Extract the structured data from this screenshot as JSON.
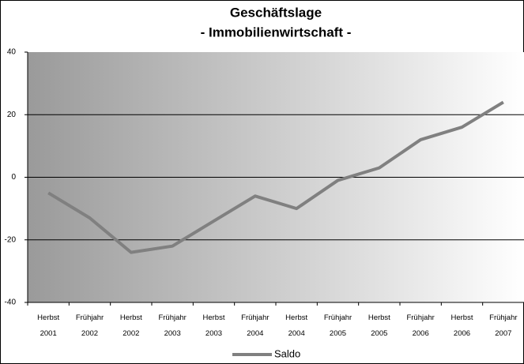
{
  "chart_data": {
    "type": "line",
    "title": "Geschäftslage",
    "subtitle": "- Immobilienwirtschaft -",
    "categories": [
      "Herbst 2001",
      "Frühjahr 2002",
      "Herbst 2002",
      "Frühjahr 2003",
      "Herbst 2003",
      "Frühjahr 2004",
      "Herbst 2004",
      "Frühjahr 2005",
      "Herbst 2005",
      "Frühjahr 2006",
      "Herbst 2006",
      "Frühjahr 2007"
    ],
    "series": [
      {
        "name": "Saldo",
        "color": "#808080",
        "values": [
          -5,
          -13,
          -24,
          -22,
          -14,
          -6,
          -10,
          -1,
          3,
          12,
          16,
          24
        ]
      }
    ],
    "ylim": [
      -40,
      40
    ],
    "yticks": [
      -40,
      -20,
      0,
      20,
      40
    ],
    "grid": true,
    "legend": "bottom"
  }
}
